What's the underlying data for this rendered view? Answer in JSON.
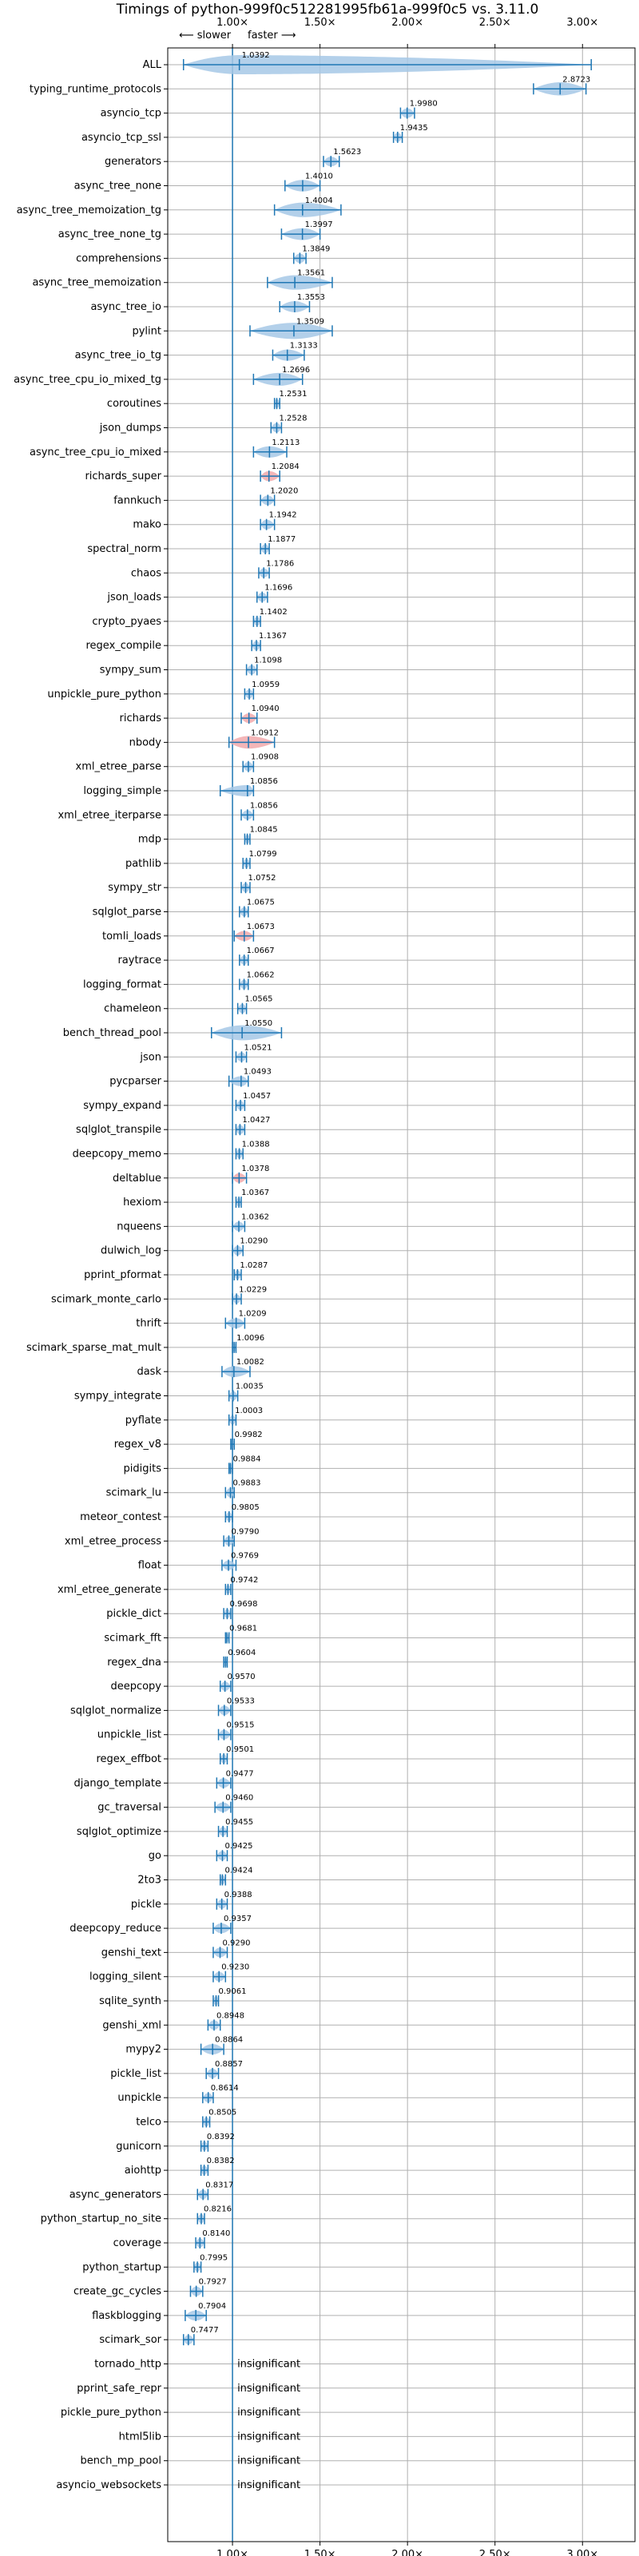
{
  "chart_data": {
    "type": "violin",
    "title": "Timings of python-999f0c512281995fb61a-999f0c5 vs. 3.11.0",
    "direction_slower": "⟵ slower",
    "direction_faster": "faster ⟶",
    "xlim": [
      0.63,
      3.3
    ],
    "xticks": [
      1.0,
      1.5,
      2.0,
      2.5,
      3.0
    ],
    "xtick_labels": [
      "1.00×",
      "1.50×",
      "2.00×",
      "2.50×",
      "3.00×"
    ],
    "grid": true,
    "colors": {
      "faster": "#1f77b4",
      "slower": "#d62728",
      "violin_faster": "#a6c8e6",
      "violin_slower": "#f2a9ab"
    },
    "insignificant_label": "insignificant",
    "benchmarks": [
      {
        "name": "ALL",
        "mean": 1.0392,
        "lo": 0.72,
        "hi": 3.05,
        "label": "1.0392"
      },
      {
        "name": "typing_runtime_protocols",
        "mean": 2.8723,
        "lo": 2.72,
        "hi": 3.02,
        "label": "2.8723"
      },
      {
        "name": "asyncio_tcp",
        "mean": 1.998,
        "lo": 1.96,
        "hi": 2.04,
        "label": "1.9980"
      },
      {
        "name": "asyncio_tcp_ssl",
        "mean": 1.9435,
        "lo": 1.92,
        "hi": 1.97,
        "label": "1.9435"
      },
      {
        "name": "generators",
        "mean": 1.5623,
        "lo": 1.52,
        "hi": 1.61,
        "label": "1.5623"
      },
      {
        "name": "async_tree_none",
        "mean": 1.401,
        "lo": 1.3,
        "hi": 1.5,
        "label": "1.4010"
      },
      {
        "name": "async_tree_memoization_tg",
        "mean": 1.4004,
        "lo": 1.24,
        "hi": 1.62,
        "label": "1.4004"
      },
      {
        "name": "async_tree_none_tg",
        "mean": 1.3997,
        "lo": 1.28,
        "hi": 1.5,
        "label": "1.3997"
      },
      {
        "name": "comprehensions",
        "mean": 1.3849,
        "lo": 1.35,
        "hi": 1.42,
        "label": "1.3849"
      },
      {
        "name": "async_tree_memoization",
        "mean": 1.3561,
        "lo": 1.2,
        "hi": 1.57,
        "label": "1.3561"
      },
      {
        "name": "async_tree_io",
        "mean": 1.3553,
        "lo": 1.27,
        "hi": 1.44,
        "label": "1.3553"
      },
      {
        "name": "pylint",
        "mean": 1.3509,
        "lo": 1.1,
        "hi": 1.57,
        "label": "1.3509"
      },
      {
        "name": "async_tree_io_tg",
        "mean": 1.3133,
        "lo": 1.23,
        "hi": 1.41,
        "label": "1.3133"
      },
      {
        "name": "async_tree_cpu_io_mixed_tg",
        "mean": 1.2696,
        "lo": 1.12,
        "hi": 1.4,
        "label": "1.2696"
      },
      {
        "name": "coroutines",
        "mean": 1.2531,
        "lo": 1.24,
        "hi": 1.27,
        "label": "1.2531"
      },
      {
        "name": "json_dumps",
        "mean": 1.2528,
        "lo": 1.22,
        "hi": 1.28,
        "label": "1.2528"
      },
      {
        "name": "async_tree_cpu_io_mixed",
        "mean": 1.2113,
        "lo": 1.12,
        "hi": 1.31,
        "label": "1.2113"
      },
      {
        "name": "richards_super",
        "mean": 1.2084,
        "lo": 1.16,
        "hi": 1.27,
        "label": "1.2084"
      },
      {
        "name": "fannkuch",
        "mean": 1.202,
        "lo": 1.16,
        "hi": 1.24,
        "label": "1.2020"
      },
      {
        "name": "mako",
        "mean": 1.1942,
        "lo": 1.16,
        "hi": 1.24,
        "label": "1.1942"
      },
      {
        "name": "spectral_norm",
        "mean": 1.1877,
        "lo": 1.16,
        "hi": 1.21,
        "label": "1.1877"
      },
      {
        "name": "chaos",
        "mean": 1.1786,
        "lo": 1.15,
        "hi": 1.21,
        "label": "1.1786"
      },
      {
        "name": "json_loads",
        "mean": 1.1696,
        "lo": 1.14,
        "hi": 1.2,
        "label": "1.1696"
      },
      {
        "name": "crypto_pyaes",
        "mean": 1.1402,
        "lo": 1.12,
        "hi": 1.16,
        "label": "1.1402"
      },
      {
        "name": "regex_compile",
        "mean": 1.1367,
        "lo": 1.11,
        "hi": 1.16,
        "label": "1.1367"
      },
      {
        "name": "sympy_sum",
        "mean": 1.1098,
        "lo": 1.08,
        "hi": 1.14,
        "label": "1.1098"
      },
      {
        "name": "unpickle_pure_python",
        "mean": 1.0959,
        "lo": 1.07,
        "hi": 1.12,
        "label": "1.0959"
      },
      {
        "name": "richards",
        "mean": 1.094,
        "lo": 1.05,
        "hi": 1.14,
        "label": "1.0940"
      },
      {
        "name": "nbody",
        "mean": 1.0912,
        "lo": 0.98,
        "hi": 1.24,
        "label": "1.0912"
      },
      {
        "name": "xml_etree_parse",
        "mean": 1.0908,
        "lo": 1.06,
        "hi": 1.12,
        "label": "1.0908"
      },
      {
        "name": "logging_simple",
        "mean": 1.0856,
        "lo": 0.93,
        "hi": 1.12,
        "label": "1.0856"
      },
      {
        "name": "xml_etree_iterparse",
        "mean": 1.0856,
        "lo": 1.05,
        "hi": 1.12,
        "label": "1.0856"
      },
      {
        "name": "mdp",
        "mean": 1.0845,
        "lo": 1.07,
        "hi": 1.1,
        "label": "1.0845"
      },
      {
        "name": "pathlib",
        "mean": 1.0799,
        "lo": 1.06,
        "hi": 1.1,
        "label": "1.0799"
      },
      {
        "name": "sympy_str",
        "mean": 1.0752,
        "lo": 1.05,
        "hi": 1.1,
        "label": "1.0752"
      },
      {
        "name": "sqlglot_parse",
        "mean": 1.0675,
        "lo": 1.04,
        "hi": 1.09,
        "label": "1.0675"
      },
      {
        "name": "tomli_loads",
        "mean": 1.0673,
        "lo": 1.01,
        "hi": 1.12,
        "label": "1.0673"
      },
      {
        "name": "raytrace",
        "mean": 1.0667,
        "lo": 1.04,
        "hi": 1.09,
        "label": "1.0667"
      },
      {
        "name": "logging_format",
        "mean": 1.0662,
        "lo": 1.04,
        "hi": 1.09,
        "label": "1.0662"
      },
      {
        "name": "chameleon",
        "mean": 1.0565,
        "lo": 1.03,
        "hi": 1.08,
        "label": "1.0565"
      },
      {
        "name": "bench_thread_pool",
        "mean": 1.055,
        "lo": 0.88,
        "hi": 1.28,
        "label": "1.0550"
      },
      {
        "name": "json",
        "mean": 1.0521,
        "lo": 1.02,
        "hi": 1.08,
        "label": "1.0521"
      },
      {
        "name": "pycparser",
        "mean": 1.0493,
        "lo": 0.98,
        "hi": 1.09,
        "label": "1.0493"
      },
      {
        "name": "sympy_expand",
        "mean": 1.0457,
        "lo": 1.02,
        "hi": 1.07,
        "label": "1.0457"
      },
      {
        "name": "sqlglot_transpile",
        "mean": 1.0427,
        "lo": 1.02,
        "hi": 1.07,
        "label": "1.0427"
      },
      {
        "name": "deepcopy_memo",
        "mean": 1.0388,
        "lo": 1.02,
        "hi": 1.06,
        "label": "1.0388"
      },
      {
        "name": "deltablue",
        "mean": 1.0378,
        "lo": 1.0,
        "hi": 1.08,
        "label": "1.0378"
      },
      {
        "name": "hexiom",
        "mean": 1.0367,
        "lo": 1.02,
        "hi": 1.05,
        "label": "1.0367"
      },
      {
        "name": "nqueens",
        "mean": 1.0362,
        "lo": 1.0,
        "hi": 1.07,
        "label": "1.0362"
      },
      {
        "name": "dulwich_log",
        "mean": 1.029,
        "lo": 1.0,
        "hi": 1.06,
        "label": "1.0290"
      },
      {
        "name": "pprint_pformat",
        "mean": 1.0287,
        "lo": 1.01,
        "hi": 1.05,
        "label": "1.0287"
      },
      {
        "name": "scimark_monte_carlo",
        "mean": 1.0229,
        "lo": 1.0,
        "hi": 1.05,
        "label": "1.0229"
      },
      {
        "name": "thrift",
        "mean": 1.0209,
        "lo": 0.96,
        "hi": 1.07,
        "label": "1.0209"
      },
      {
        "name": "scimark_sparse_mat_mult",
        "mean": 1.0096,
        "lo": 1.0,
        "hi": 1.02,
        "label": "1.0096"
      },
      {
        "name": "dask",
        "mean": 1.0082,
        "lo": 0.94,
        "hi": 1.1,
        "label": "1.0082"
      },
      {
        "name": "sympy_integrate",
        "mean": 1.0035,
        "lo": 0.98,
        "hi": 1.03,
        "label": "1.0035"
      },
      {
        "name": "pyflate",
        "mean": 1.0003,
        "lo": 0.98,
        "hi": 1.02,
        "label": "1.0003"
      },
      {
        "name": "regex_v8",
        "mean": 0.9982,
        "lo": 0.99,
        "hi": 1.01,
        "label": "0.9982"
      },
      {
        "name": "pidigits",
        "mean": 0.9884,
        "lo": 0.98,
        "hi": 1.0,
        "label": "0.9884"
      },
      {
        "name": "scimark_lu",
        "mean": 0.9883,
        "lo": 0.96,
        "hi": 1.01,
        "label": "0.9883"
      },
      {
        "name": "meteor_contest",
        "mean": 0.9805,
        "lo": 0.96,
        "hi": 1.0,
        "label": "0.9805"
      },
      {
        "name": "xml_etree_process",
        "mean": 0.979,
        "lo": 0.95,
        "hi": 1.01,
        "label": "0.9790"
      },
      {
        "name": "float",
        "mean": 0.9769,
        "lo": 0.94,
        "hi": 1.02,
        "label": "0.9769"
      },
      {
        "name": "xml_etree_generate",
        "mean": 0.9742,
        "lo": 0.96,
        "hi": 0.99,
        "label": "0.9742"
      },
      {
        "name": "pickle_dict",
        "mean": 0.9698,
        "lo": 0.95,
        "hi": 0.99,
        "label": "0.9698"
      },
      {
        "name": "scimark_fft",
        "mean": 0.9681,
        "lo": 0.96,
        "hi": 0.98,
        "label": "0.9681"
      },
      {
        "name": "regex_dna",
        "mean": 0.9604,
        "lo": 0.95,
        "hi": 0.97,
        "label": "0.9604"
      },
      {
        "name": "deepcopy",
        "mean": 0.957,
        "lo": 0.93,
        "hi": 0.99,
        "label": "0.9570"
      },
      {
        "name": "sqlglot_normalize",
        "mean": 0.9533,
        "lo": 0.92,
        "hi": 0.99,
        "label": "0.9533"
      },
      {
        "name": "unpickle_list",
        "mean": 0.9515,
        "lo": 0.92,
        "hi": 0.99,
        "label": "0.9515"
      },
      {
        "name": "regex_effbot",
        "mean": 0.9501,
        "lo": 0.93,
        "hi": 0.97,
        "label": "0.9501"
      },
      {
        "name": "django_template",
        "mean": 0.9477,
        "lo": 0.91,
        "hi": 0.99,
        "label": "0.9477"
      },
      {
        "name": "gc_traversal",
        "mean": 0.946,
        "lo": 0.9,
        "hi": 0.99,
        "label": "0.9460"
      },
      {
        "name": "sqlglot_optimize",
        "mean": 0.9455,
        "lo": 0.92,
        "hi": 0.97,
        "label": "0.9455"
      },
      {
        "name": "go",
        "mean": 0.9425,
        "lo": 0.91,
        "hi": 0.97,
        "label": "0.9425"
      },
      {
        "name": "2to3",
        "mean": 0.9424,
        "lo": 0.93,
        "hi": 0.96,
        "label": "0.9424"
      },
      {
        "name": "pickle",
        "mean": 0.9388,
        "lo": 0.91,
        "hi": 0.97,
        "label": "0.9388"
      },
      {
        "name": "deepcopy_reduce",
        "mean": 0.9357,
        "lo": 0.89,
        "hi": 0.99,
        "label": "0.9357"
      },
      {
        "name": "genshi_text",
        "mean": 0.929,
        "lo": 0.89,
        "hi": 0.97,
        "label": "0.9290"
      },
      {
        "name": "logging_silent",
        "mean": 0.923,
        "lo": 0.89,
        "hi": 0.96,
        "label": "0.9230"
      },
      {
        "name": "sqlite_synth",
        "mean": 0.9061,
        "lo": 0.89,
        "hi": 0.92,
        "label": "0.9061"
      },
      {
        "name": "genshi_xml",
        "mean": 0.8948,
        "lo": 0.86,
        "hi": 0.93,
        "label": "0.8948"
      },
      {
        "name": "mypy2",
        "mean": 0.8864,
        "lo": 0.82,
        "hi": 0.95,
        "label": "0.8864"
      },
      {
        "name": "pickle_list",
        "mean": 0.8857,
        "lo": 0.85,
        "hi": 0.92,
        "label": "0.8857"
      },
      {
        "name": "unpickle",
        "mean": 0.8614,
        "lo": 0.83,
        "hi": 0.89,
        "label": "0.8614"
      },
      {
        "name": "telco",
        "mean": 0.8505,
        "lo": 0.83,
        "hi": 0.87,
        "label": "0.8505"
      },
      {
        "name": "gunicorn",
        "mean": 0.8392,
        "lo": 0.82,
        "hi": 0.86,
        "label": "0.8392"
      },
      {
        "name": "aiohttp",
        "mean": 0.8382,
        "lo": 0.82,
        "hi": 0.86,
        "label": "0.8382"
      },
      {
        "name": "async_generators",
        "mean": 0.8317,
        "lo": 0.8,
        "hi": 0.86,
        "label": "0.8317"
      },
      {
        "name": "python_startup_no_site",
        "mean": 0.8216,
        "lo": 0.8,
        "hi": 0.84,
        "label": "0.8216"
      },
      {
        "name": "coverage",
        "mean": 0.814,
        "lo": 0.79,
        "hi": 0.84,
        "label": "0.8140"
      },
      {
        "name": "python_startup",
        "mean": 0.7995,
        "lo": 0.78,
        "hi": 0.82,
        "label": "0.7995"
      },
      {
        "name": "create_gc_cycles",
        "mean": 0.7927,
        "lo": 0.76,
        "hi": 0.83,
        "label": "0.7927"
      },
      {
        "name": "flaskblogging",
        "mean": 0.7904,
        "lo": 0.73,
        "hi": 0.85,
        "label": "0.7904"
      },
      {
        "name": "scimark_sor",
        "mean": 0.7477,
        "lo": 0.72,
        "hi": 0.78,
        "label": "0.7477"
      },
      {
        "name": "tornado_http",
        "insignificant": true
      },
      {
        "name": "pprint_safe_repr",
        "insignificant": true
      },
      {
        "name": "pickle_pure_python",
        "insignificant": true
      },
      {
        "name": "html5lib",
        "insignificant": true
      },
      {
        "name": "bench_mp_pool",
        "insignificant": true
      },
      {
        "name": "asyncio_websockets",
        "insignificant": true
      }
    ]
  }
}
